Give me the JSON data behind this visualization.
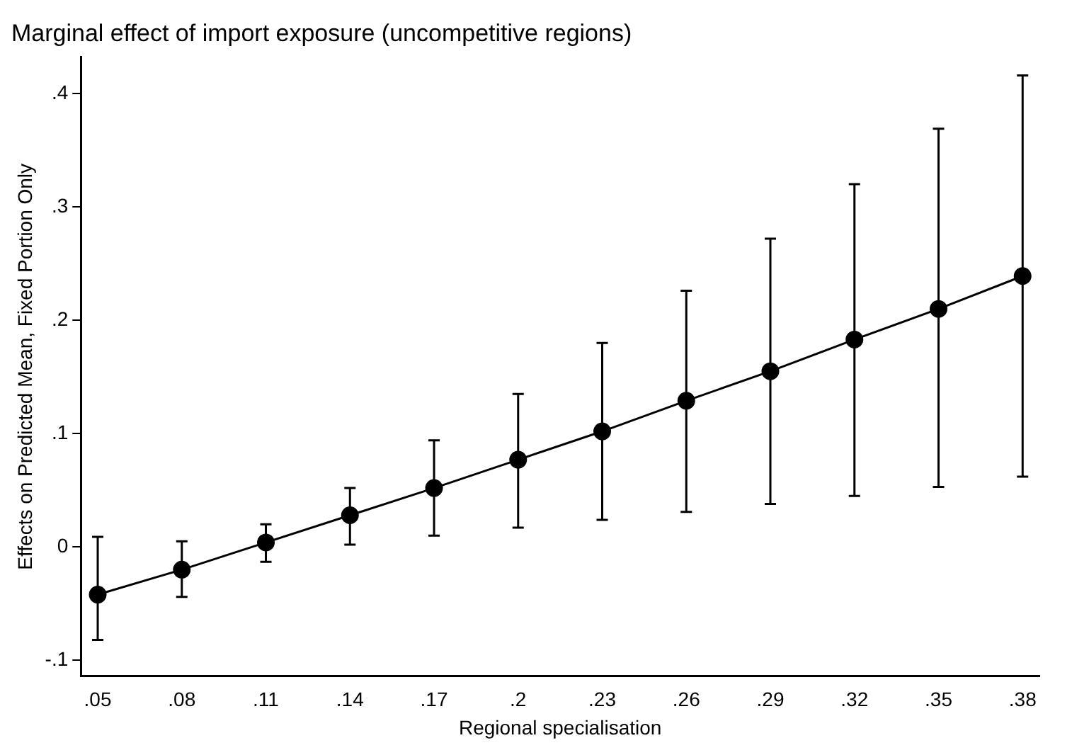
{
  "chart_data": {
    "type": "line",
    "title": "Marginal effect of import exposure (uncompetitive regions)",
    "xlabel": "Regional specialisation",
    "ylabel": "Effects on Predicted Mean, Fixed Portion Only",
    "x": [
      0.05,
      0.08,
      0.11,
      0.14,
      0.17,
      0.2,
      0.23,
      0.26,
      0.29,
      0.32,
      0.35,
      0.38
    ],
    "series": [
      {
        "color": "#000000",
        "values": [
          -0.042,
          -0.02,
          0.004,
          0.028,
          0.052,
          0.077,
          0.102,
          0.129,
          0.155,
          0.183,
          0.21,
          0.239
        ],
        "errors": [
          [
            -0.082,
            0.009
          ],
          [
            -0.044,
            0.005
          ],
          [
            -0.013,
            0.02
          ],
          [
            0.002,
            0.052
          ],
          [
            0.01,
            0.094
          ],
          [
            0.017,
            0.135
          ],
          [
            0.024,
            0.18
          ],
          [
            0.031,
            0.226
          ],
          [
            0.038,
            0.272
          ],
          [
            0.045,
            0.32
          ],
          [
            0.053,
            0.369
          ],
          [
            0.062,
            0.416
          ]
        ]
      }
    ],
    "xlim": [
      0.044,
      0.386
    ],
    "xticks": [
      {
        "value": 0.05,
        "label": ".05"
      },
      {
        "value": 0.08,
        "label": ".08"
      },
      {
        "value": 0.11,
        "label": ".11"
      },
      {
        "value": 0.14,
        "label": ".14"
      },
      {
        "value": 0.17,
        "label": ".17"
      },
      {
        "value": 0.2,
        "label": ".2"
      },
      {
        "value": 0.23,
        "label": ".23"
      },
      {
        "value": 0.26,
        "label": ".26"
      },
      {
        "value": 0.29,
        "label": ".29"
      },
      {
        "value": 0.32,
        "label": ".32"
      },
      {
        "value": 0.35,
        "label": ".35"
      },
      {
        "value": 0.38,
        "label": ".38"
      }
    ],
    "ylim": [
      -0.114,
      0.432
    ],
    "yticks": [
      {
        "value": -0.1,
        "label": "-.1"
      },
      0,
      {
        "value": 0.1,
        "label": ".1"
      },
      {
        "value": 0.2,
        "label": ".2"
      },
      {
        "value": 0.3,
        "label": ".3"
      },
      {
        "value": 0.4,
        "label": ".4"
      }
    ],
    "grid": false,
    "legend": false,
    "marker": "circle",
    "line_style": "solid"
  }
}
